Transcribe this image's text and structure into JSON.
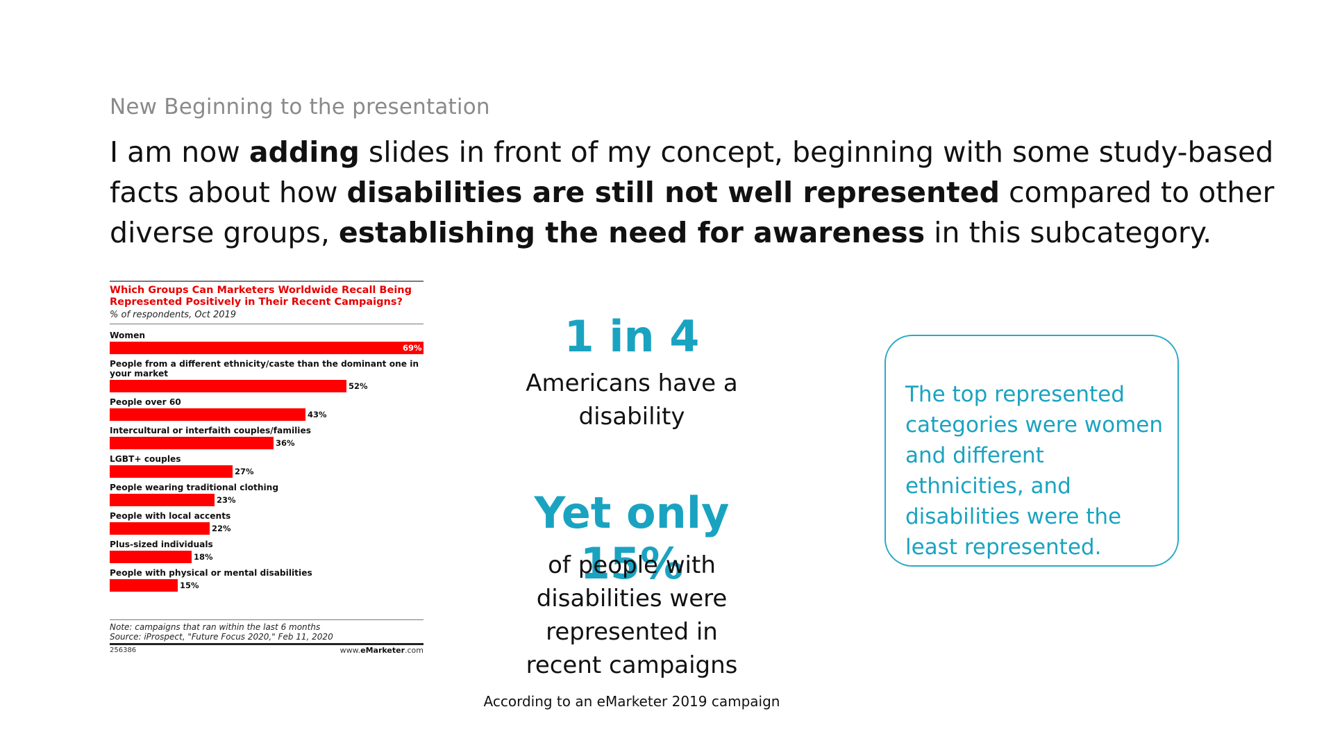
{
  "subtitle": "New Beginning to the presentation",
  "headline": {
    "p1": "I am now ",
    "b1": "adding",
    "p2": " slides in front of my concept, beginning with some study-based facts about how ",
    "b2": "disabilities are still not well represented",
    "p3": " compared to other diverse groups, ",
    "b3": "establishing the need for awareness",
    "p4": " in this subcategory."
  },
  "chart_data": {
    "type": "bar",
    "orientation": "horizontal",
    "title": "Which Groups Can Marketers Worldwide Recall Being Represented Positively in Their Recent Campaigns?",
    "subtitle": "% of respondents, Oct 2019",
    "categories": [
      "Women",
      "People from a different ethnicity/caste than the dominant one in your market",
      "People over 60",
      "Intercultural or interfaith couples/families",
      "LGBT+ couples",
      "People wearing traditional clothing",
      "People with local accents",
      "Plus-sized individuals",
      "People with physical or mental disabilities"
    ],
    "values": [
      69,
      52,
      43,
      36,
      27,
      23,
      22,
      18,
      15
    ],
    "value_labels": [
      "69%",
      "52%",
      "43%",
      "36%",
      "27%",
      "23%",
      "22%",
      "18%",
      "15%"
    ],
    "xlim": [
      0,
      69
    ],
    "bar_color": "#ff0000",
    "note": "Note: campaigns that ran within the last 6 months",
    "source": "Source: iProspect, \"Future Focus 2020,\" Feb 11, 2020",
    "id": "256386",
    "site_prefix": "www.",
    "site_brand": "eMarketer",
    "site_suffix": ".com"
  },
  "stats": {
    "big1": "1 in 4",
    "text1": "Americans have a disability",
    "big2": "Yet only 15%",
    "text2": "of people with disabilities were represented in recent campaigns",
    "source": "According to an eMarketer 2019 campaign"
  },
  "callout": {
    "text": "The top represented categories were women and different ethnicities, and disabilities were the least represented."
  },
  "colors": {
    "accent": "#1aa3c1",
    "chart_title": "#e60000",
    "bar": "#ff0000"
  }
}
